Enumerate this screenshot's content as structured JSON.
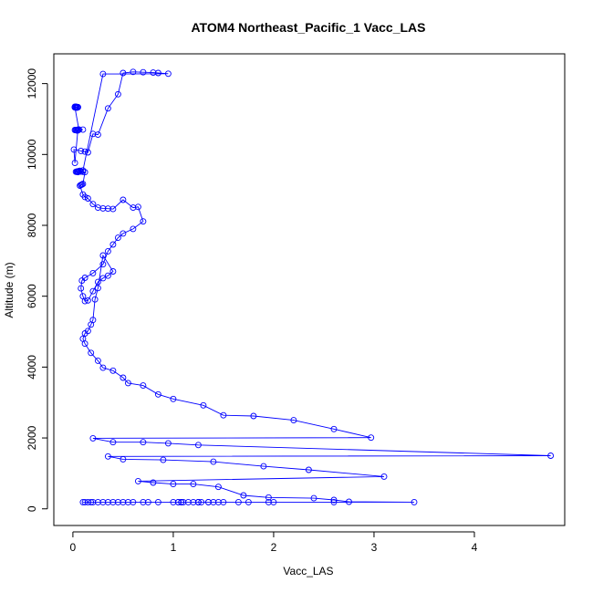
{
  "chart_data": {
    "type": "line",
    "title": "ATOM4 Northeast_Pacific_1 Vacc_LAS",
    "xlabel": "Vacc_LAS",
    "ylabel": "Altitude (m)",
    "xlim": [
      -0.19,
      4.9
    ],
    "ylim": [
      -470,
      12840
    ],
    "x_ticks": [
      0,
      1,
      2,
      3,
      4
    ],
    "y_ticks": [
      0,
      2000,
      4000,
      6000,
      8000,
      10000,
      12000
    ],
    "grid": false,
    "legend": "none",
    "markers": "open-circle",
    "color": "#0000ff",
    "series": [
      {
        "x": [
          0.02,
          0.03,
          0.04,
          0.05,
          0.04,
          0.03,
          0.02,
          0.05,
          0.03,
          0.02,
          0.06,
          0.04,
          0.03,
          0.1,
          0.05,
          0.02,
          0.06,
          0.04,
          0.03,
          0.05,
          0.02,
          0.01,
          0.08,
          0.12,
          0.15,
          0.2,
          0.25,
          0.35,
          0.45,
          0.5,
          0.6,
          0.7,
          0.8,
          0.85,
          0.95,
          0.3,
          0.1,
          0.06,
          0.04,
          0.03,
          0.05,
          0.07,
          0.05,
          0.04,
          0.06,
          0.08,
          0.1,
          0.12,
          0.1,
          0.09,
          0.08,
          0.07,
          0.1,
          0.12,
          0.15,
          0.2,
          0.25,
          0.3,
          0.35,
          0.4,
          0.5,
          0.6,
          0.65,
          0.7,
          0.6,
          0.5,
          0.45,
          0.4,
          0.35,
          0.3,
          0.2,
          0.12,
          0.09,
          0.08,
          0.1,
          0.12,
          0.15,
          0.2,
          0.25,
          0.3,
          0.35,
          0.4,
          0.3,
          0.25,
          0.22,
          0.2,
          0.18,
          0.15,
          0.12,
          0.1,
          0.12,
          0.18,
          0.25,
          0.3,
          0.4,
          0.5,
          0.55,
          0.7,
          0.85,
          1.0,
          1.3,
          1.5,
          1.8,
          2.2,
          2.6,
          2.97,
          0.2,
          0.4,
          0.7,
          0.95,
          1.25,
          4.76,
          0.35,
          0.5,
          0.9,
          1.4,
          1.9,
          2.35,
          3.1,
          0.65,
          0.8,
          1.0,
          1.2,
          1.45,
          1.7,
          1.95,
          2.4,
          2.6,
          2.75,
          3.4,
          2.6,
          2.0,
          1.95,
          1.75,
          1.65,
          1.5,
          1.4,
          1.35,
          1.28,
          1.25,
          1.2,
          1.1,
          1.08,
          1.05,
          1.08,
          1.25,
          1.35,
          1.45,
          1.25,
          1.15,
          1.05,
          1.0,
          0.85,
          0.75,
          0.7,
          0.6,
          0.55,
          0.5,
          0.45,
          0.4,
          0.35,
          0.3,
          0.25,
          0.2,
          0.18,
          0.15,
          0.12,
          0.1
        ],
        "y": [
          11350,
          11350,
          11340,
          11330,
          11320,
          11350,
          11330,
          11340,
          11320,
          11330,
          10700,
          10680,
          10690,
          10700,
          10680,
          10690,
          10700,
          10680,
          10690,
          10700,
          9760,
          10140,
          10100,
          10080,
          10060,
          10580,
          10560,
          11300,
          11700,
          12300,
          12330,
          12320,
          12310,
          12300,
          12280,
          12270,
          9550,
          9530,
          9520,
          9510,
          9500,
          9540,
          9520,
          9510,
          9530,
          9520,
          9510,
          9500,
          9170,
          9150,
          9140,
          9120,
          8870,
          8800,
          8760,
          8600,
          8500,
          8480,
          8470,
          8460,
          8720,
          8500,
          8520,
          8110,
          7900,
          7770,
          7650,
          7460,
          7270,
          6900,
          6650,
          6520,
          6440,
          6220,
          6000,
          5860,
          5880,
          6140,
          6400,
          6510,
          6580,
          6700,
          7150,
          6230,
          5910,
          5330,
          5200,
          5020,
          4950,
          4800,
          4660,
          4400,
          4180,
          3980,
          3900,
          3700,
          3550,
          3480,
          3230,
          3100,
          2920,
          2640,
          2620,
          2500,
          2250,
          2010,
          1990,
          1880,
          1880,
          1850,
          1800,
          1500,
          1480,
          1400,
          1380,
          1330,
          1200,
          1100,
          910,
          780,
          740,
          700,
          700,
          620,
          380,
          320,
          300,
          250,
          200,
          190,
          190,
          190,
          190,
          190,
          190,
          190,
          190,
          190,
          190,
          190,
          190,
          190,
          190,
          190,
          190,
          190,
          190,
          190,
          190,
          190,
          190,
          190,
          190,
          190,
          190,
          190,
          190,
          190,
          190,
          190,
          190,
          190,
          190,
          190,
          190,
          190,
          190,
          190
        ]
      }
    ]
  }
}
